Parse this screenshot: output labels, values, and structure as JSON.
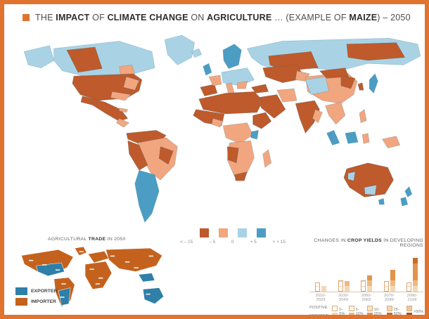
{
  "frame": {
    "border_color": "#E0742F"
  },
  "title": {
    "segments": [
      {
        "t": "THE ",
        "b": 0
      },
      {
        "t": "IMPACT",
        "b": 1
      },
      {
        "t": " OF ",
        "b": 0
      },
      {
        "t": "CLIMATE CHANGE",
        "b": 1
      },
      {
        "t": " ON ",
        "b": 0
      },
      {
        "t": "AGRICULTURE",
        "b": 1
      },
      {
        "t": " … (EXAMPLE OF ",
        "b": 0
      },
      {
        "t": "MAIZE",
        "b": 1
      },
      {
        "t": ") – 2050",
        "b": 0
      }
    ]
  },
  "map_legend": {
    "colors": [
      "#BE5A2B",
      "#F1A67F",
      "#A9D3E5",
      "#4C9DC3"
    ],
    "labels": [
      "< – 15",
      "– 5",
      "0",
      "+ 5",
      "> + 15"
    ]
  },
  "trade": {
    "heading": [
      {
        "t": "AGRICULTURAL ",
        "b": 0
      },
      {
        "t": "TRADE",
        "b": 1
      },
      {
        "t": " IN 2050",
        "b": 0
      }
    ],
    "legend": [
      {
        "label": "EXPORTER",
        "color": "#2F7FA9"
      },
      {
        "label": "IMPORTER",
        "color": "#C4621D"
      }
    ]
  },
  "chart_data": {
    "type": "bar",
    "title_segments": [
      {
        "t": "CHANGES IN ",
        "b": 0
      },
      {
        "t": "CROP YIELDS",
        "b": 1
      },
      {
        "t": " IN DEVELOPING REGIONS",
        "b": 0
      }
    ],
    "categories": [
      "2010-2029",
      "2030-2049",
      "2050-2069",
      "2070-2089",
      "2090-2109"
    ],
    "series": [
      {
        "name": "POSITIVE",
        "values": [
          8,
          10,
          10,
          9,
          8
        ]
      },
      {
        "name": "NEGATIVE",
        "values": [
          5,
          9,
          14,
          19,
          30
        ]
      }
    ],
    "ylim": [
      0,
      32
    ],
    "legend": {
      "ranges": [
        "0-5%",
        "5-10%",
        "10-25%",
        "25-50%",
        ">50%"
      ],
      "positive_shades": [
        "#FFFFFF",
        "#FBF1E4",
        "#F7E4CC",
        "#F3D7B5",
        "#EFCA9E"
      ],
      "negative_shades": [
        "#F4D8B6",
        "#EDBA82",
        "#E2944C",
        "#CB6B26",
        "#AC4F1A"
      ]
    }
  }
}
